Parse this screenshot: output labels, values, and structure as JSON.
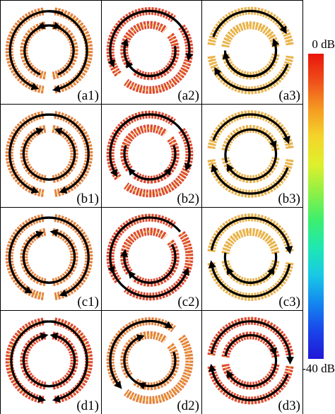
{
  "colorbar": {
    "top_label": "0 dB",
    "bottom_label": "-40 dB",
    "stops": [
      "#e8140c",
      "#f0501a",
      "#f59a22",
      "#f4d52a",
      "#dff02c",
      "#8ff046",
      "#3cef6e",
      "#1ee8b2",
      "#19c8e6",
      "#1486f0",
      "#1a44ea",
      "#2018d6"
    ]
  },
  "panels": [
    {
      "label": "(a1)",
      "intensity": "medium"
    },
    {
      "label": "(a2)",
      "intensity": "high"
    },
    {
      "label": "(a3)",
      "intensity": "low"
    },
    {
      "label": "(b1)",
      "intensity": "medium"
    },
    {
      "label": "(b2)",
      "intensity": "high"
    },
    {
      "label": "(b3)",
      "intensity": "low"
    },
    {
      "label": "(c1)",
      "intensity": "medium"
    },
    {
      "label": "(c2)",
      "intensity": "high"
    },
    {
      "label": "(c3)",
      "intensity": "low"
    },
    {
      "label": "(d1)",
      "intensity": "high"
    },
    {
      "label": "(d2)",
      "intensity": "medium"
    },
    {
      "label": "(d3)",
      "intensity": "high"
    }
  ],
  "colors": {
    "arrow": "#000000",
    "ring_high": "#d9361a",
    "ring_medium": "#e0742a",
    "ring_low": "#e6aa3a",
    "frame": "#000000"
  }
}
